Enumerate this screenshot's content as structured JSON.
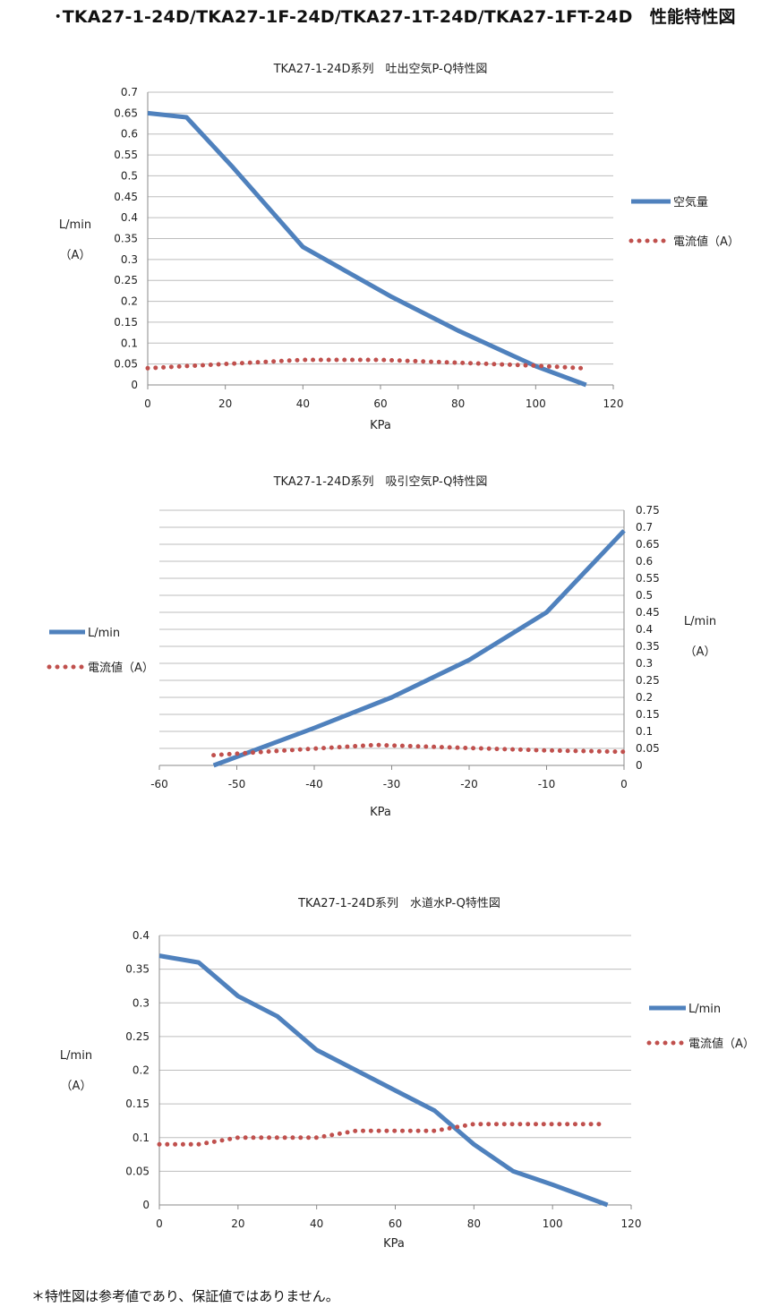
{
  "page": {
    "title": "･TKA27-1-24D/TKA27-1F-24D/TKA27-1T-24D/TKA27-1FT-24D　性能特性図",
    "footnote": "＊特性図は参考値であり、保証値ではありません。"
  },
  "colors": {
    "air": "#4f81bd",
    "current": "#c0504d",
    "grid": "#bdbdbd"
  },
  "chart_data": [
    {
      "type": "line",
      "title": "TKA27-1-24D系列　吐出空気P-Q特性図",
      "xlabel": "KPa",
      "ylabel": "L/min",
      "ylabel2": "（A）",
      "xlim": [
        0,
        120
      ],
      "ylim": [
        0,
        0.7
      ],
      "xticks": [
        "0",
        "20",
        "40",
        "60",
        "80",
        "100",
        "120"
      ],
      "yticks": [
        "0",
        "0.05",
        "0.1",
        "0.15",
        "0.2",
        "0.25",
        "0.3",
        "0.35",
        "0.4",
        "0.45",
        "0.5",
        "0.55",
        "0.6",
        "0.65",
        "0.7"
      ],
      "grid": true,
      "y_axis_side": "left",
      "legend_position": "right",
      "series": [
        {
          "name": "空気量",
          "style": "solid",
          "x": [
            0,
            10,
            22,
            40,
            63,
            80,
            100,
            113
          ],
          "y": [
            0.65,
            0.64,
            0.52,
            0.33,
            0.21,
            0.13,
            0.045,
            0
          ]
        },
        {
          "name": "電流値（A）",
          "style": "dotted",
          "x": [
            0,
            20,
            40,
            60,
            80,
            100,
            112
          ],
          "y": [
            0.04,
            0.05,
            0.06,
            0.06,
            0.053,
            0.046,
            0.04
          ]
        }
      ]
    },
    {
      "type": "line",
      "title": "TKA27-1-24D系列　吸引空気P-Q特性図",
      "xlabel": "KPa",
      "ylabel": "L/min",
      "ylabel2": "（A）",
      "xlim": [
        -60,
        0
      ],
      "ylim": [
        0,
        0.75
      ],
      "xticks": [
        "-60",
        "-50",
        "-40",
        "-30",
        "-20",
        "-10",
        "0"
      ],
      "yticks": [
        "0",
        "0.05",
        "0.1",
        "0.15",
        "0.2",
        "0.25",
        "0.3",
        "0.35",
        "0.4",
        "0.45",
        "0.5",
        "0.55",
        "0.6",
        "0.65",
        "0.7",
        "0.75"
      ],
      "grid": true,
      "y_axis_side": "right",
      "legend_position": "left",
      "series": [
        {
          "name": "L/min",
          "style": "solid",
          "x": [
            -53,
            -40,
            -30,
            -20,
            -10,
            0
          ],
          "y": [
            0,
            0.11,
            0.2,
            0.31,
            0.45,
            0.69
          ]
        },
        {
          "name": "電流値（A）",
          "style": "dotted",
          "x": [
            -53,
            -45,
            -38,
            -32,
            -20,
            -10,
            0
          ],
          "y": [
            0.03,
            0.042,
            0.052,
            0.06,
            0.051,
            0.044,
            0.04
          ]
        }
      ]
    },
    {
      "type": "line",
      "title": "TKA27-1-24D系列　水道水P-Q特性図",
      "xlabel": "KPa",
      "ylabel": "L/min",
      "ylabel2": "（A）",
      "xlim": [
        0,
        120
      ],
      "ylim": [
        0,
        0.4
      ],
      "xticks": [
        "0",
        "20",
        "40",
        "60",
        "80",
        "100",
        "120"
      ],
      "yticks": [
        "0",
        "0.05",
        "0.1",
        "0.15",
        "0.2",
        "0.25",
        "0.3",
        "0.35",
        "0.4"
      ],
      "grid": true,
      "y_axis_side": "left",
      "legend_position": "right",
      "series": [
        {
          "name": "L/min",
          "style": "solid",
          "x": [
            0,
            10,
            20,
            30,
            40,
            50,
            60,
            70,
            80,
            90,
            100,
            114
          ],
          "y": [
            0.37,
            0.36,
            0.31,
            0.28,
            0.23,
            0.2,
            0.17,
            0.14,
            0.09,
            0.05,
            0.03,
            0
          ]
        },
        {
          "name": "電流値（A）",
          "style": "dotted",
          "x": [
            0,
            10,
            20,
            30,
            40,
            50,
            60,
            70,
            80,
            90,
            100,
            112
          ],
          "y": [
            0.09,
            0.09,
            0.1,
            0.1,
            0.1,
            0.11,
            0.11,
            0.11,
            0.12,
            0.12,
            0.12,
            0.12
          ]
        }
      ]
    }
  ]
}
